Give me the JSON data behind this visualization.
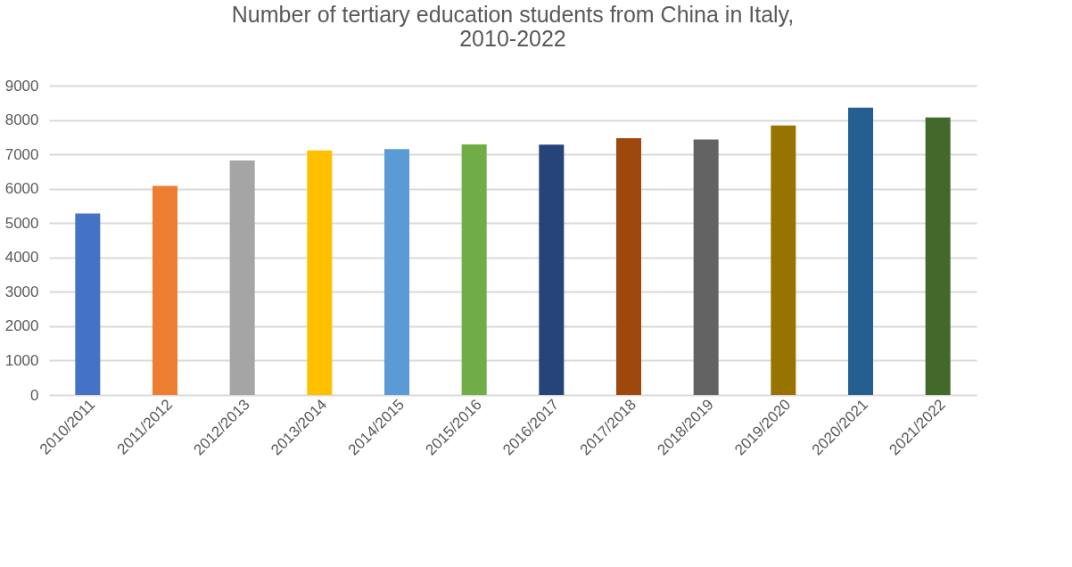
{
  "chart_data": {
    "type": "bar",
    "title": "Number of tertiary education students from China in Italy, 2010-2022",
    "categories": [
      "2010/2011",
      "2011/2012",
      "2012/2013",
      "2013/2014",
      "2014/2015",
      "2015/2016",
      "2016/2017",
      "2017/2018",
      "2018/2019",
      "2019/2020",
      "2020/2021",
      "2021/2022"
    ],
    "values": [
      5280,
      6080,
      6820,
      7110,
      7150,
      7290,
      7280,
      7470,
      7430,
      7840,
      8360,
      8070
    ],
    "colors": [
      "#4472c4",
      "#ed7d31",
      "#a5a5a5",
      "#ffc000",
      "#5b9bd5",
      "#70ad47",
      "#264478",
      "#9e480e",
      "#636363",
      "#997300",
      "#255e91",
      "#43682b"
    ],
    "ylim": [
      0,
      9000
    ],
    "yticks": [
      0,
      1000,
      2000,
      3000,
      4000,
      5000,
      6000,
      7000,
      8000,
      9000
    ],
    "grid": "y",
    "legend": false
  }
}
